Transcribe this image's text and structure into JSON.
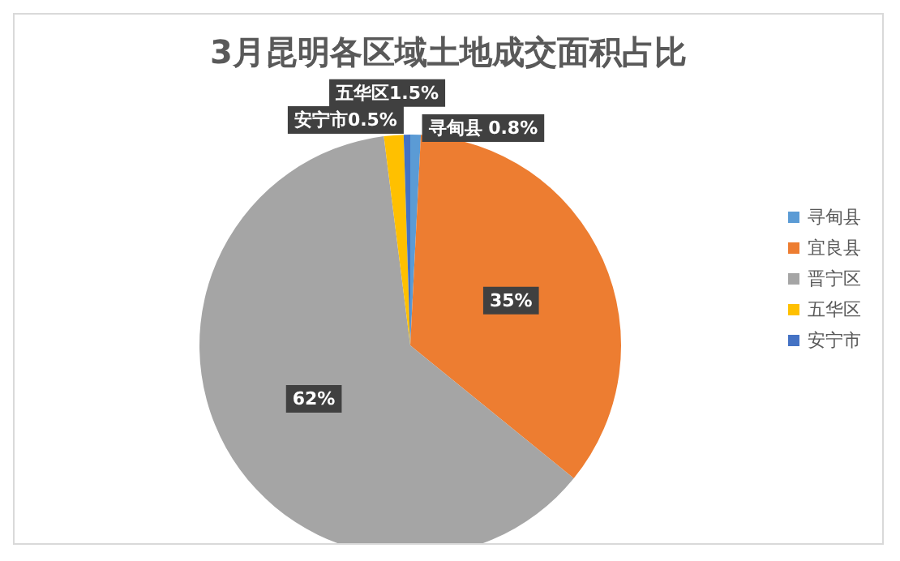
{
  "chart_data": {
    "type": "pie",
    "title": "3月昆明各区域土地成交面积占比",
    "categories": [
      "寻甸县",
      "宜良县",
      "晋宁区",
      "五华区",
      "安宁市"
    ],
    "values": [
      0.8,
      35,
      62,
      1.5,
      0.5
    ],
    "colors": [
      "#5b9bd5",
      "#ed7d31",
      "#a5a5a5",
      "#ffc000",
      "#4472c4"
    ],
    "value_labels": [
      "寻甸县 0.8%",
      "35%",
      "62%",
      "五华区1.5%",
      "安宁市0.5%"
    ],
    "legend": "right"
  }
}
